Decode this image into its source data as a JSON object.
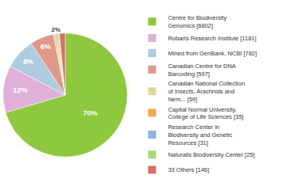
{
  "chart_data": {
    "type": "pie",
    "categories": [
      "Centre for Biodiversity\nGenomics [6802]",
      "Robarts Research Institute [1181]",
      "Mined from GenBank, NCBI [782]",
      "Canadian Centre for DNA\nBarcoding [597]",
      "Canadian National Collection\nof Insects, Arachnids and\nNem... [59]",
      "Capital Normal University,\nCollege of Life Sciences [35]",
      "Research Center in\nBiodiversity and Genetic\nResources [31]",
      "Naturalis Biodiversity Center [25]",
      "33 Others [146]"
    ],
    "values": [
      70.43,
      12.23,
      8.1,
      6.18,
      0.61,
      0.36,
      0.32,
      0.26,
      1.51
    ],
    "value_labels": [
      "70%",
      "12%",
      "8%",
      "6%",
      null,
      null,
      null,
      null,
      "2%"
    ],
    "data_labels": true,
    "colors": [
      "#8dc83e",
      "#e0b0d8",
      "#b0cce0",
      "#e09888",
      "#d8d898",
      "#f0a850",
      "#88b8d8",
      "#a8d878",
      "#d87060"
    ],
    "legend": "right"
  }
}
